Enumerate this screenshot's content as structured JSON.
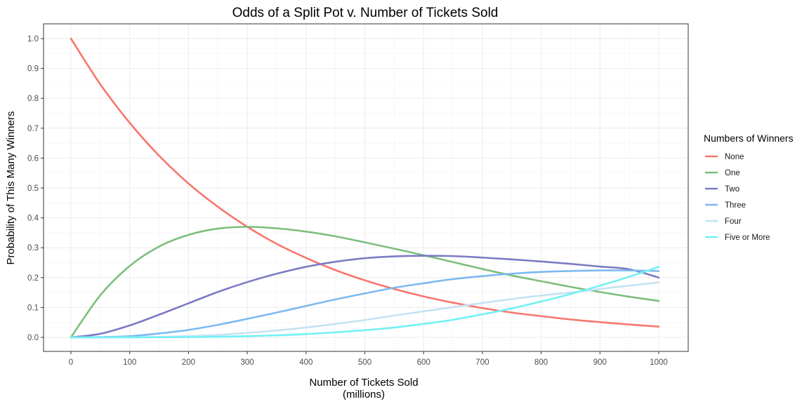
{
  "chart_data": {
    "type": "line",
    "title": "Odds of a Split Pot v. Number of Tickets Sold",
    "xlabel": "Number of Tickets Sold",
    "xlabel_sub": "(millions)",
    "ylabel": "Probability of This Many Winners",
    "xlim": [
      0,
      1000
    ],
    "ylim": [
      0,
      1.0
    ],
    "x_ticks": [
      0,
      100,
      200,
      300,
      400,
      500,
      600,
      700,
      800,
      900,
      1000
    ],
    "x_tick_labels": [
      "0",
      "100",
      "200",
      "300",
      "400",
      "500",
      "600",
      "700",
      "800",
      "900",
      "1000"
    ],
    "y_ticks": [
      0,
      0.1,
      0.2,
      0.3,
      0.4,
      0.5,
      0.6,
      0.7,
      0.8,
      0.9,
      1.0
    ],
    "y_tick_labels": [
      "0.0",
      "0.1",
      "0.2",
      "0.3",
      "0.4",
      "0.5",
      "0.6",
      "0.7",
      "0.8",
      "0.9",
      "1.0"
    ],
    "grid": true,
    "legend_title": "Numbers of Winners",
    "legend_position": "right",
    "x": [
      0,
      50,
      100,
      150,
      200,
      250,
      300,
      350,
      400,
      450,
      500,
      550,
      600,
      650,
      700,
      750,
      800,
      850,
      900,
      950,
      1000
    ],
    "series": [
      {
        "name": "None",
        "color": "#F8766D",
        "values": [
          1.0,
          0.847,
          0.718,
          0.608,
          0.515,
          0.437,
          0.37,
          0.313,
          0.266,
          0.225,
          0.191,
          0.162,
          0.137,
          0.116,
          0.098,
          0.083,
          0.071,
          0.06,
          0.051,
          0.043,
          0.036
        ]
      },
      {
        "name": "One",
        "color": "#7CBE7C",
        "values": [
          0.0,
          0.141,
          0.239,
          0.304,
          0.343,
          0.364,
          0.37,
          0.365,
          0.354,
          0.338,
          0.318,
          0.297,
          0.275,
          0.252,
          0.229,
          0.207,
          0.188,
          0.169,
          0.152,
          0.136,
          0.122
        ]
      },
      {
        "name": "Two",
        "color": "#7B7BC4",
        "values": [
          0.0,
          0.012,
          0.04,
          0.076,
          0.114,
          0.152,
          0.185,
          0.213,
          0.236,
          0.253,
          0.265,
          0.271,
          0.273,
          0.272,
          0.267,
          0.261,
          0.254,
          0.246,
          0.237,
          0.228,
          0.2
        ]
      },
      {
        "name": "Three",
        "color": "#7DB9F0",
        "values": [
          0.0,
          0.001,
          0.004,
          0.013,
          0.025,
          0.042,
          0.062,
          0.083,
          0.105,
          0.127,
          0.147,
          0.166,
          0.181,
          0.195,
          0.205,
          0.213,
          0.219,
          0.222,
          0.224,
          0.224,
          0.222
        ]
      },
      {
        "name": "Four",
        "color": "#C5E2F2",
        "values": [
          0.0,
          0.0,
          0.0004,
          0.0015,
          0.004,
          0.008,
          0.015,
          0.023,
          0.033,
          0.045,
          0.058,
          0.073,
          0.087,
          0.101,
          0.115,
          0.128,
          0.14,
          0.15,
          0.162,
          0.173,
          0.184
        ]
      },
      {
        "name": "Five or More",
        "color": "#73F1F4",
        "values": [
          0.0,
          0.0,
          0.0001,
          0.0003,
          0.001,
          0.002,
          0.004,
          0.007,
          0.011,
          0.017,
          0.024,
          0.033,
          0.045,
          0.059,
          0.077,
          0.097,
          0.12,
          0.145,
          0.173,
          0.203,
          0.236
        ]
      }
    ]
  }
}
